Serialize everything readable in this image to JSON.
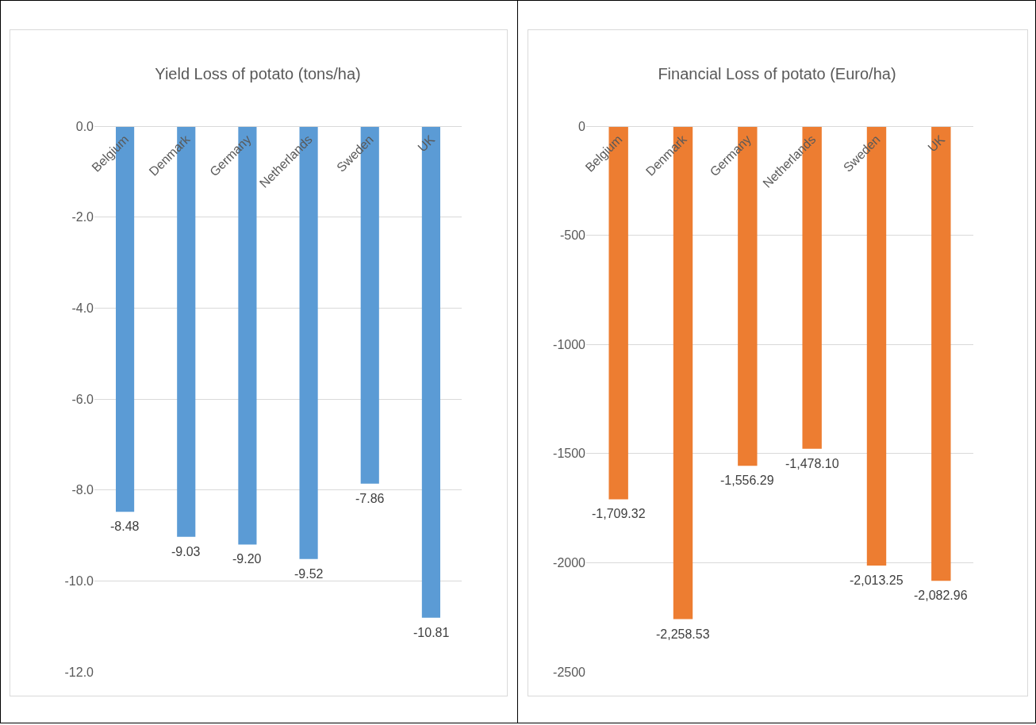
{
  "chart_data": [
    {
      "type": "bar",
      "title": "Yield Loss of potato (tons/ha)",
      "categories": [
        "Belgium",
        "Denmark",
        "Germany",
        "Netherlands",
        "Sweden",
        "UK"
      ],
      "values": [
        -8.48,
        -9.03,
        -9.2,
        -9.52,
        -7.86,
        -10.81
      ],
      "value_labels": [
        "-8.48",
        "-9.03",
        "-9.20",
        "-9.52",
        "-7.86",
        "-10.81"
      ],
      "color": "#5b9bd5",
      "ylim": [
        -12,
        0
      ],
      "yticks": [
        {
          "value": -12,
          "label": "-12.0"
        },
        {
          "value": -10,
          "label": "-10.0"
        },
        {
          "value": -8,
          "label": "-8.0"
        },
        {
          "value": -6,
          "label": "-6.0"
        },
        {
          "value": -4,
          "label": "-4.0"
        },
        {
          "value": -2,
          "label": "-2.0"
        },
        {
          "value": 0,
          "label": "0.0"
        }
      ],
      "grid": "y"
    },
    {
      "type": "bar",
      "title": "Financial Loss of potato (Euro/ha)",
      "categories": [
        "Belgium",
        "Denmark",
        "Germany",
        "Netherlands",
        "Sweden",
        "UK"
      ],
      "values": [
        -1709.32,
        -2258.53,
        -1556.29,
        -1478.1,
        -2013.25,
        -2082.96
      ],
      "value_labels": [
        "-1,709.32",
        "-2,258.53",
        "-1,556.29",
        "-1,478.10",
        "-2,013.25",
        "-2,082.96"
      ],
      "color": "#ed7d31",
      "ylim": [
        -2500,
        0
      ],
      "yticks": [
        -2500,
        -2000,
        -1500,
        -1000,
        -500,
        0
      ],
      "grid": "y"
    }
  ]
}
